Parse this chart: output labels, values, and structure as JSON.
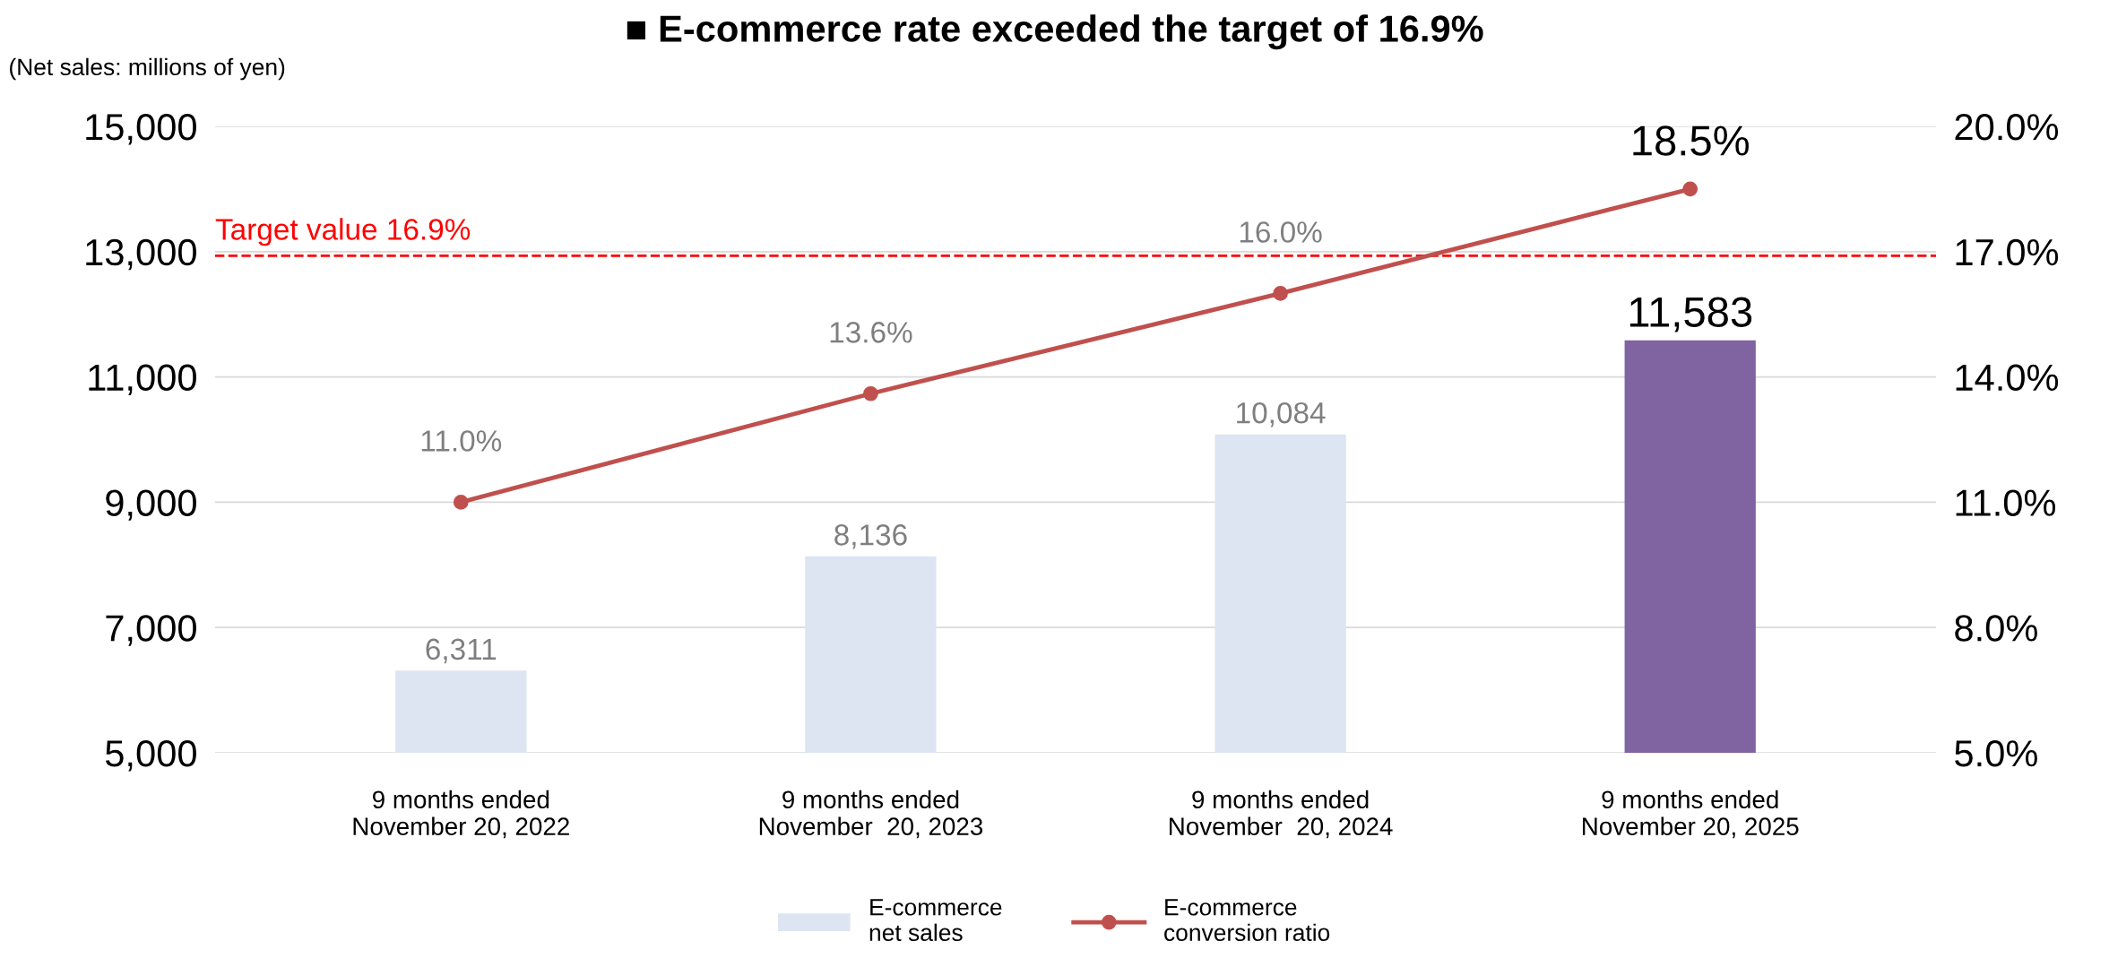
{
  "chart_data": {
    "type": "bar",
    "title": "■ E-commerce rate exceeded the target of 16.9%",
    "ylabel": "(Net sales: millions of yen)",
    "categories": [
      "9 months ended\nNovember 20, 2022",
      "9 months ended\nNovember  20, 2023",
      "9 months ended\nNovember  20, 2024",
      "9 months ended\nNovember 20, 2025"
    ],
    "series": [
      {
        "name": "E-commerce\nnet sales",
        "colors": [
          "#dce5f1",
          "#dce5f1",
          "#dce5f1",
          "#8064a2"
        ],
        "values": [
          6311,
          8136,
          10084,
          11583
        ],
        "value_labels": [
          "6,311",
          "8,136",
          "10,084",
          "11,583"
        ]
      },
      {
        "name": "E-commerce\nconversion ratio",
        "type": "line",
        "axis": "y2",
        "color": "#c0504d",
        "marker": "circle",
        "values": [
          11.0,
          13.6,
          16.0,
          18.5
        ],
        "value_labels": [
          "11.0%",
          "13.6%",
          "16.0%",
          "18.5%"
        ]
      }
    ],
    "ylim": [
      5000,
      15000
    ],
    "yticks": [
      {
        "value": 5000,
        "label": "5,000"
      },
      {
        "value": 7000,
        "label": "7,000"
      },
      {
        "value": 9000,
        "label": "9,000"
      },
      {
        "value": 11000,
        "label": "11,000"
      },
      {
        "value": 13000,
        "label": "13,000"
      },
      {
        "value": 15000,
        "label": "15,000"
      }
    ],
    "y2lim": [
      5,
      20
    ],
    "y2ticks": [
      {
        "value": 5,
        "label": "5.0%"
      },
      {
        "value": 8,
        "label": "8.0%"
      },
      {
        "value": 11,
        "label": "11.0%"
      },
      {
        "value": 14,
        "label": "14.0%"
      },
      {
        "value": 17,
        "label": "17.0%"
      },
      {
        "value": 20,
        "label": "20.0%"
      }
    ],
    "ref_lines": [
      {
        "axis": "y2",
        "value": 16.9,
        "label": "Target value 16.9%",
        "color": "#ff0000",
        "line_style": "dashed"
      }
    ],
    "grid": "y",
    "legend": "bottom"
  }
}
